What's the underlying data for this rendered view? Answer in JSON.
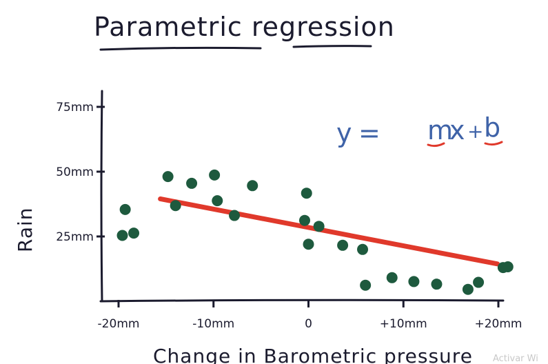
{
  "chart_data": {
    "type": "scatter",
    "title": "Parametric regression",
    "xlabel": "Change in Barometric pressure",
    "ylabel": "Rain",
    "x_ticks": [
      {
        "value": -20,
        "label": "-20mm"
      },
      {
        "value": -10,
        "label": "-10mm"
      },
      {
        "value": 0,
        "label": "0"
      },
      {
        "value": 10,
        "label": "+10mm"
      },
      {
        "value": 20,
        "label": "+20mm"
      }
    ],
    "y_ticks": [
      {
        "value": 25,
        "label": "25mm"
      },
      {
        "value": 50,
        "label": "50mm"
      },
      {
        "value": 75,
        "label": "75mm"
      }
    ],
    "xlim": [
      -22,
      21
    ],
    "ylim": [
      0,
      80
    ],
    "equation": {
      "y": "y",
      "equals": "=",
      "m": "m",
      "x": "x",
      "plus": "+",
      "b": "b"
    },
    "points": [
      {
        "x": -19.6,
        "y": 25.4
      },
      {
        "x": -19.3,
        "y": 35.4
      },
      {
        "x": -18.4,
        "y": 26.3
      },
      {
        "x": -14.8,
        "y": 48.1
      },
      {
        "x": -14.0,
        "y": 36.9
      },
      {
        "x": -12.3,
        "y": 45.5
      },
      {
        "x": -9.9,
        "y": 48.7
      },
      {
        "x": -9.6,
        "y": 38.8
      },
      {
        "x": -7.8,
        "y": 33.1
      },
      {
        "x": -5.9,
        "y": 44.6
      },
      {
        "x": -0.4,
        "y": 31.2
      },
      {
        "x": -0.2,
        "y": 41.7
      },
      {
        "x": 0,
        "y": 22.0
      },
      {
        "x": 1.1,
        "y": 28.9
      },
      {
        "x": 3.6,
        "y": 21.6
      },
      {
        "x": 5.7,
        "y": 20.0
      },
      {
        "x": 6.0,
        "y": 6.2
      },
      {
        "x": 8.8,
        "y": 9.1
      },
      {
        "x": 11.1,
        "y": 7.6
      },
      {
        "x": 13.5,
        "y": 6.6
      },
      {
        "x": 16.8,
        "y": 4.6
      },
      {
        "x": 17.9,
        "y": 7.3
      },
      {
        "x": 21.0,
        "y": 13.3
      },
      {
        "x": 20.5,
        "y": 13.0
      }
    ],
    "regression": {
      "from": {
        "x": -15.6,
        "y": 39.5
      },
      "to": {
        "x": 19.9,
        "y": 14.4
      }
    },
    "colors": {
      "points": "#1e5a3e",
      "line": "#e0392b",
      "equation": "#3f63a8",
      "ink": "#1b1b2e"
    }
  },
  "watermark": "Activar Wi"
}
